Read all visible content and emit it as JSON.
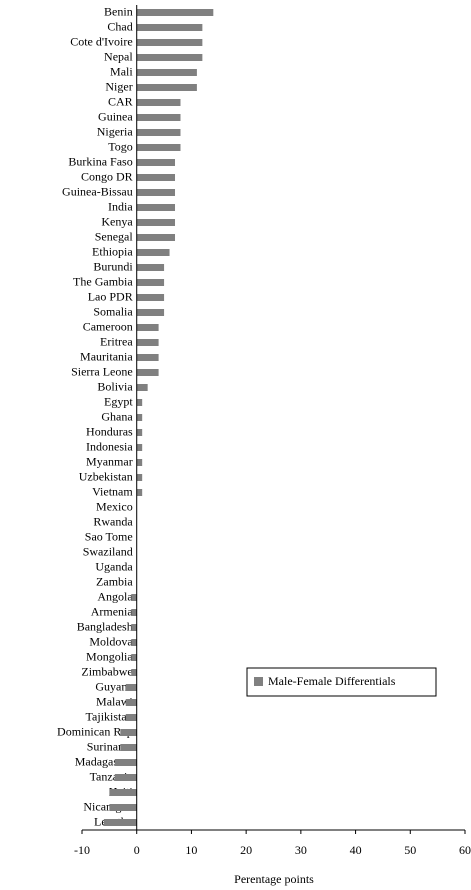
{
  "chart_data": {
    "type": "bar",
    "x_label": "Perentage points",
    "categories": [
      "Benin",
      "Chad",
      "Cote d'Ivoire",
      "Nepal",
      "Mali",
      "Niger",
      "CAR",
      "Guinea",
      "Nigeria",
      "Togo",
      "Burkina Faso",
      "Congo DR",
      "Guinea-Bissau",
      "India",
      "Kenya",
      "Senegal",
      "Ethiopia",
      "Burundi",
      "The Gambia",
      "Lao PDR",
      "Somalia",
      "Cameroon",
      "Eritrea",
      "Mauritania",
      "Sierra Leone",
      "Bolivia",
      "Egypt",
      "Ghana",
      "Honduras",
      "Indonesia",
      "Myanmar",
      "Uzbekistan",
      "Vietnam",
      "Mexico",
      "Rwanda",
      "Sao Tome",
      "Swaziland",
      "Uganda",
      "Zambia",
      "Angola",
      "Armenia",
      "Bangladesh",
      "Moldova",
      "Mongolia",
      "Zimbabwe",
      "Guyana",
      "Malawi",
      "Tajikistan",
      "Dominican Rep",
      "Suriname",
      "Madagascar",
      "Tanzania",
      "Haiti",
      "Nicaragua",
      "Lesotho"
    ],
    "series": [
      {
        "name": "Male-Female Differentials",
        "color": "#808080",
        "values": [
          14,
          12,
          12,
          12,
          11,
          11,
          8,
          8,
          8,
          8,
          7,
          7,
          7,
          7,
          7,
          7,
          6,
          5,
          5,
          5,
          5,
          4,
          4,
          4,
          4,
          2,
          1,
          1,
          1,
          1,
          1,
          1,
          1,
          0,
          0,
          0,
          0,
          0,
          0,
          -1,
          -1,
          -1,
          -1,
          -1,
          -1,
          -2,
          -2,
          -2,
          -3,
          -3,
          -4,
          -4,
          -5,
          -5,
          -6
        ]
      }
    ],
    "xlim": [
      -10,
      60
    ],
    "xticks": [
      -10,
      0,
      10,
      20,
      30,
      40,
      50,
      60
    ],
    "legend_position": "lower right"
  }
}
